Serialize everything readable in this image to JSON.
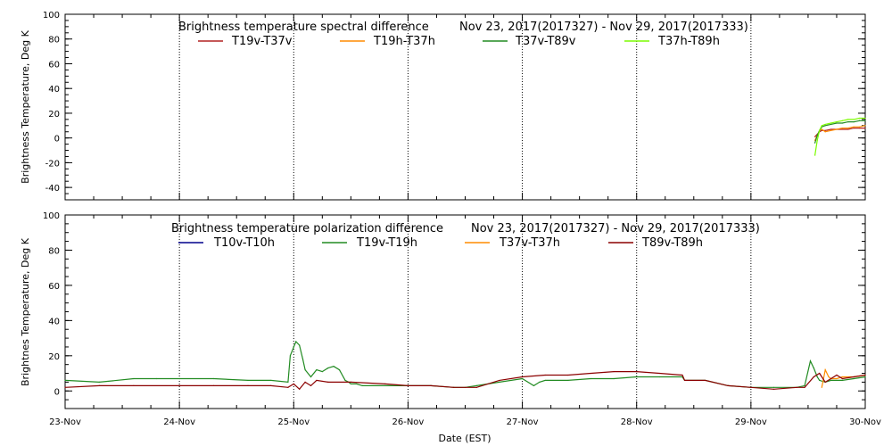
{
  "chart_data": [
    {
      "type": "line",
      "title": "Brightness temperature spectral difference",
      "date_range": "Nov 23, 2017(2017327) - Nov 29, 2017(2017333)",
      "ylabel": "Brightness Temperature, Deg K",
      "xlabel": "",
      "ylim": [
        -50,
        100
      ],
      "yticks": [
        -40,
        -20,
        0,
        20,
        40,
        60,
        80,
        100
      ],
      "xlim": [
        0,
        7
      ],
      "grid": "vertical dotted lines at each day",
      "legend": "top",
      "series": [
        {
          "name": "T19v-T37v",
          "color": "#b22222",
          "x": [
            6.56,
            6.58,
            6.6,
            6.62,
            6.65,
            6.7,
            6.75,
            6.8,
            6.85,
            6.9,
            6.95,
            7.0
          ],
          "y": [
            1,
            3,
            5,
            6,
            6,
            7,
            7,
            7,
            7,
            8,
            8,
            8
          ]
        },
        {
          "name": "T19h-T37h",
          "color": "#ff8c00",
          "x": [
            6.56,
            6.58,
            6.6,
            6.62,
            6.65,
            6.7,
            6.75,
            6.8,
            6.85,
            6.9,
            6.95,
            7.0
          ],
          "y": [
            -2,
            2,
            6,
            7,
            5,
            6,
            7,
            8,
            8,
            9,
            9,
            10
          ]
        },
        {
          "name": "T37v-T89v",
          "color": "#228b22",
          "x": [
            6.56,
            6.58,
            6.6,
            6.62,
            6.65,
            6.7,
            6.75,
            6.8,
            6.85,
            6.9,
            6.95,
            7.0
          ],
          "y": [
            -4,
            2,
            6,
            9,
            10,
            11,
            12,
            12,
            13,
            13,
            14,
            14
          ]
        },
        {
          "name": "T37h-T89h",
          "color": "#7cfc00",
          "x": [
            6.56,
            6.58,
            6.6,
            6.62,
            6.65,
            6.7,
            6.75,
            6.8,
            6.85,
            6.9,
            6.95,
            7.0
          ],
          "y": [
            -14,
            -2,
            6,
            10,
            11,
            12,
            13,
            14,
            15,
            15,
            16,
            16
          ]
        }
      ]
    },
    {
      "type": "line",
      "title": "Brightness temperature polarization difference",
      "date_range": "Nov 23, 2017(2017327) - Nov 29, 2017(2017333)",
      "ylabel": "Brightnes Temperature, Deg K",
      "xlabel": "Date (EST)",
      "ylim": [
        -10,
        100
      ],
      "yticks": [
        0,
        20,
        40,
        60,
        80,
        100
      ],
      "xlim": [
        0,
        7
      ],
      "categories": [
        "23-Nov",
        "24-Nov",
        "25-Nov",
        "26-Nov",
        "27-Nov",
        "28-Nov",
        "29-Nov",
        "30-Nov"
      ],
      "grid": "vertical dotted lines at each day",
      "legend": "top",
      "series": [
        {
          "name": "T10v-T10h",
          "color": "#00008b",
          "x": [],
          "y": []
        },
        {
          "name": "T19v-T19h",
          "color": "#228b22",
          "x": [
            0.0,
            0.3,
            0.6,
            0.8,
            1.0,
            1.3,
            1.6,
            1.8,
            1.95,
            1.97,
            2.0,
            2.02,
            2.05,
            2.08,
            2.1,
            2.15,
            2.2,
            2.25,
            2.3,
            2.35,
            2.4,
            2.45,
            2.48,
            2.5,
            2.55,
            2.6,
            2.8,
            3.0,
            3.2,
            3.4,
            3.5,
            3.6,
            3.8,
            4.0,
            4.1,
            4.15,
            4.2,
            4.4,
            4.6,
            4.8,
            5.0,
            5.2,
            5.4,
            5.42,
            5.6,
            5.8,
            6.0,
            6.2,
            6.4,
            6.47,
            6.52,
            6.55,
            6.58,
            6.6,
            6.65,
            6.7,
            6.8,
            6.9,
            7.0
          ],
          "y": [
            6,
            5,
            7,
            7,
            7,
            7,
            6,
            6,
            5,
            20,
            25,
            28,
            26,
            18,
            12,
            8,
            12,
            11,
            13,
            14,
            12,
            6,
            5,
            4,
            4,
            3,
            3,
            3,
            3,
            2,
            2,
            3,
            5,
            7,
            3,
            5,
            6,
            6,
            7,
            7,
            8,
            8,
            8,
            6,
            6,
            3,
            2,
            2,
            2,
            3,
            17,
            13,
            8,
            6,
            5,
            6,
            6,
            7,
            8
          ]
        },
        {
          "name": "T37v-T37h",
          "color": "#ff8c00",
          "x": [
            6.62,
            6.65,
            6.68,
            6.7,
            6.75,
            6.8,
            6.9,
            7.0
          ],
          "y": [
            2,
            12,
            8,
            7,
            7,
            8,
            8,
            9
          ]
        },
        {
          "name": "T89v-T89h",
          "color": "#8b0000",
          "x": [
            0.0,
            0.3,
            0.6,
            1.0,
            1.3,
            1.6,
            1.8,
            1.95,
            2.0,
            2.05,
            2.1,
            2.15,
            2.2,
            2.3,
            2.5,
            2.8,
            3.0,
            3.2,
            3.4,
            3.6,
            3.8,
            4.0,
            4.2,
            4.4,
            4.6,
            4.8,
            5.0,
            5.2,
            5.4,
            5.42,
            5.6,
            5.8,
            6.0,
            6.2,
            6.4,
            6.47,
            6.55,
            6.6,
            6.65,
            6.7,
            6.75,
            6.8,
            6.9,
            7.0
          ],
          "y": [
            2,
            3,
            3,
            3,
            3,
            3,
            3,
            2,
            4,
            1,
            5,
            3,
            6,
            5,
            5,
            4,
            3,
            3,
            2,
            2,
            6,
            8,
            9,
            9,
            10,
            11,
            11,
            10,
            9,
            6,
            6,
            3,
            2,
            1,
            2,
            2,
            8,
            10,
            5,
            7,
            9,
            7,
            8,
            9
          ]
        }
      ]
    }
  ]
}
